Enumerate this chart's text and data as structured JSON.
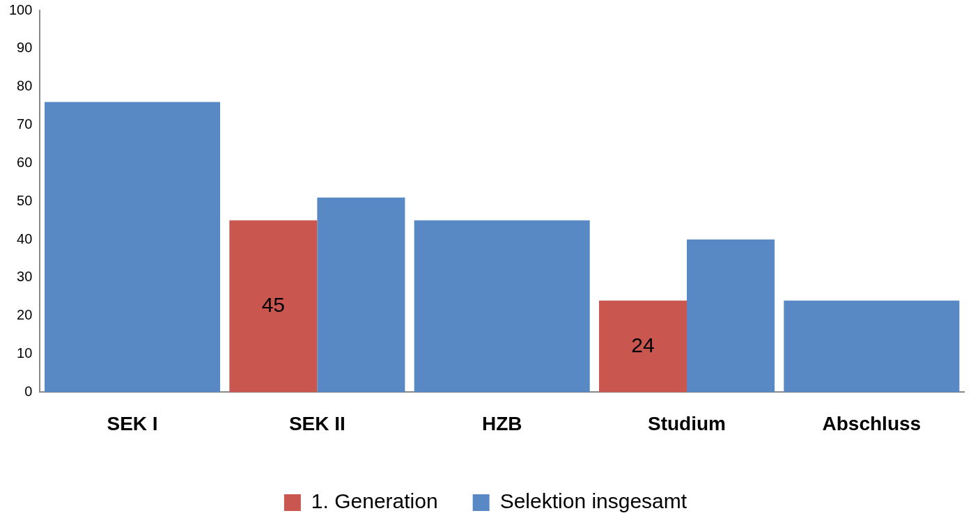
{
  "chart_data": {
    "type": "bar",
    "categories": [
      "SEK I",
      "SEK II",
      "HZB",
      "Studium",
      "Abschluss"
    ],
    "series": [
      {
        "name": "1. Generation",
        "color": "#c9574f",
        "values": [
          null,
          45,
          null,
          24,
          null
        ],
        "value_labels": [
          null,
          "45",
          null,
          "24",
          null
        ]
      },
      {
        "name": "Selektion insgesamt",
        "color": "#5889c5",
        "values": [
          76,
          51,
          45,
          40,
          24
        ]
      }
    ],
    "ylim": [
      0,
      100
    ],
    "yticks": [
      0,
      10,
      20,
      30,
      40,
      50,
      60,
      70,
      80,
      90,
      100
    ],
    "grid": false,
    "legend": "bottom"
  }
}
